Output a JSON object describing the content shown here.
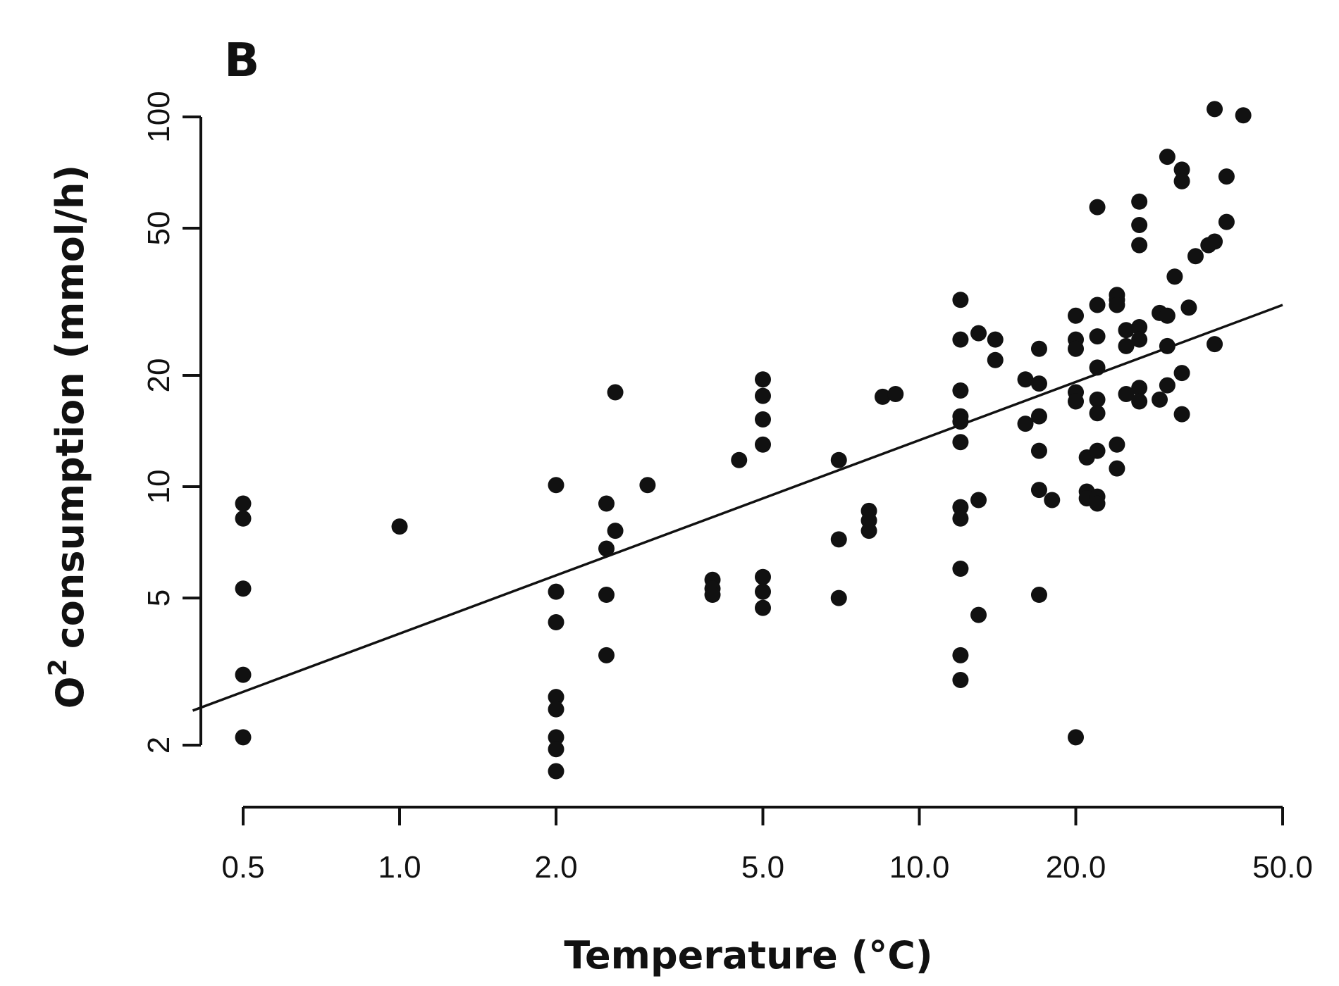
{
  "chart_data": {
    "type": "scatter",
    "panel_label": "B",
    "xlabel": "Temperature (°C)",
    "ylabel_prefix": "O",
    "ylabel_sup": "2",
    "ylabel_suffix": "consumption (mmol/h)",
    "xscale": "log",
    "yscale": "log",
    "xlim": [
      0.5,
      50
    ],
    "ylim": [
      2,
      100
    ],
    "x_ticks": [
      0.5,
      1,
      2,
      5,
      10,
      20,
      50
    ],
    "x_tick_labels": [
      "0.5",
      "1.0",
      "2.0",
      "5.0",
      "10.0",
      "20.0",
      "50.0"
    ],
    "y_ticks": [
      2,
      5,
      10,
      20,
      50,
      100
    ],
    "y_tick_labels": [
      "2",
      "5",
      "10",
      "20",
      "50",
      "100"
    ],
    "grid": false,
    "fit_line": {
      "x": [
        0.4,
        50
      ],
      "y": [
        2.48,
        31
      ]
    },
    "points": [
      [
        0.5,
        9.0
      ],
      [
        0.5,
        8.2
      ],
      [
        0.5,
        5.3
      ],
      [
        0.5,
        3.1
      ],
      [
        0.5,
        2.1
      ],
      [
        1.0,
        7.8
      ],
      [
        2.0,
        10.1
      ],
      [
        2.0,
        5.2
      ],
      [
        2.0,
        4.3
      ],
      [
        2.0,
        2.7
      ],
      [
        2.0,
        2.5
      ],
      [
        2.0,
        2.1
      ],
      [
        2.0,
        1.95
      ],
      [
        2.0,
        1.7
      ],
      [
        2.5,
        9.0
      ],
      [
        2.5,
        6.8
      ],
      [
        2.5,
        5.1
      ],
      [
        2.5,
        3.5
      ],
      [
        2.6,
        7.6
      ],
      [
        2.6,
        18.0
      ],
      [
        3.0,
        10.1
      ],
      [
        4.0,
        5.6
      ],
      [
        4.0,
        5.3
      ],
      [
        4.0,
        5.1
      ],
      [
        4.5,
        11.8
      ],
      [
        5.0,
        19.5
      ],
      [
        5.0,
        17.6
      ],
      [
        5.0,
        15.2
      ],
      [
        5.0,
        13.0
      ],
      [
        5.0,
        5.7
      ],
      [
        5.0,
        5.2
      ],
      [
        5.0,
        4.7
      ],
      [
        7.0,
        11.8
      ],
      [
        7.0,
        7.2
      ],
      [
        7.0,
        5.0
      ],
      [
        8.0,
        8.6
      ],
      [
        8.0,
        8.1
      ],
      [
        8.0,
        7.6
      ],
      [
        8.5,
        17.5
      ],
      [
        9.0,
        17.8
      ],
      [
        12.0,
        32.0
      ],
      [
        12.0,
        25.0
      ],
      [
        12.0,
        18.2
      ],
      [
        12.0,
        15.5
      ],
      [
        12.0,
        15.0
      ],
      [
        12.0,
        13.2
      ],
      [
        12.0,
        8.8
      ],
      [
        12.0,
        8.2
      ],
      [
        12.0,
        6.0
      ],
      [
        12.0,
        3.5
      ],
      [
        12.0,
        3.0
      ],
      [
        13.0,
        26.0
      ],
      [
        13.0,
        9.2
      ],
      [
        13.0,
        4.5
      ],
      [
        14.0,
        25.0
      ],
      [
        14.0,
        22.0
      ],
      [
        16.0,
        19.5
      ],
      [
        16.0,
        14.8
      ],
      [
        17.0,
        23.6
      ],
      [
        17.0,
        19.0
      ],
      [
        17.0,
        15.5
      ],
      [
        17.0,
        12.5
      ],
      [
        17.0,
        9.8
      ],
      [
        17.0,
        5.1
      ],
      [
        18.0,
        9.2
      ],
      [
        20.0,
        29.0
      ],
      [
        20.0,
        25.0
      ],
      [
        20.0,
        23.6
      ],
      [
        20.0,
        18.0
      ],
      [
        20.0,
        17.0
      ],
      [
        20.0,
        2.1
      ],
      [
        21.0,
        12.0
      ],
      [
        21.0,
        9.7
      ],
      [
        21.0,
        9.3
      ],
      [
        22.0,
        57.0
      ],
      [
        22.0,
        31.0
      ],
      [
        22.0,
        25.5
      ],
      [
        22.0,
        21.0
      ],
      [
        22.0,
        17.2
      ],
      [
        22.0,
        15.8
      ],
      [
        22.0,
        12.5
      ],
      [
        22.0,
        9.4
      ],
      [
        22.0,
        9.0
      ],
      [
        24.0,
        33.0
      ],
      [
        24.0,
        32.0
      ],
      [
        24.0,
        31.0
      ],
      [
        24.0,
        13.0
      ],
      [
        24.0,
        11.2
      ],
      [
        25.0,
        26.5
      ],
      [
        25.0,
        24.0
      ],
      [
        25.0,
        17.8
      ],
      [
        26.5,
        59.0
      ],
      [
        26.5,
        51.0
      ],
      [
        26.5,
        45.0
      ],
      [
        26.5,
        27.0
      ],
      [
        26.5,
        25.0
      ],
      [
        26.5,
        18.5
      ],
      [
        26.5,
        17.0
      ],
      [
        29.0,
        29.5
      ],
      [
        29.0,
        17.2
      ],
      [
        30.0,
        78.0
      ],
      [
        30.0,
        29.0
      ],
      [
        30.0,
        24.0
      ],
      [
        30.0,
        18.8
      ],
      [
        31.0,
        37.0
      ],
      [
        32.0,
        72.0
      ],
      [
        32.0,
        67.0
      ],
      [
        32.0,
        20.3
      ],
      [
        32.0,
        15.7
      ],
      [
        33.0,
        30.5
      ],
      [
        34.0,
        42.0
      ],
      [
        36.0,
        45.0
      ],
      [
        37.0,
        46.0
      ],
      [
        37.0,
        24.3
      ],
      [
        37.0,
        105.0
      ],
      [
        39.0,
        69.0
      ],
      [
        39.0,
        52.0
      ],
      [
        42.0,
        101.0
      ]
    ]
  }
}
